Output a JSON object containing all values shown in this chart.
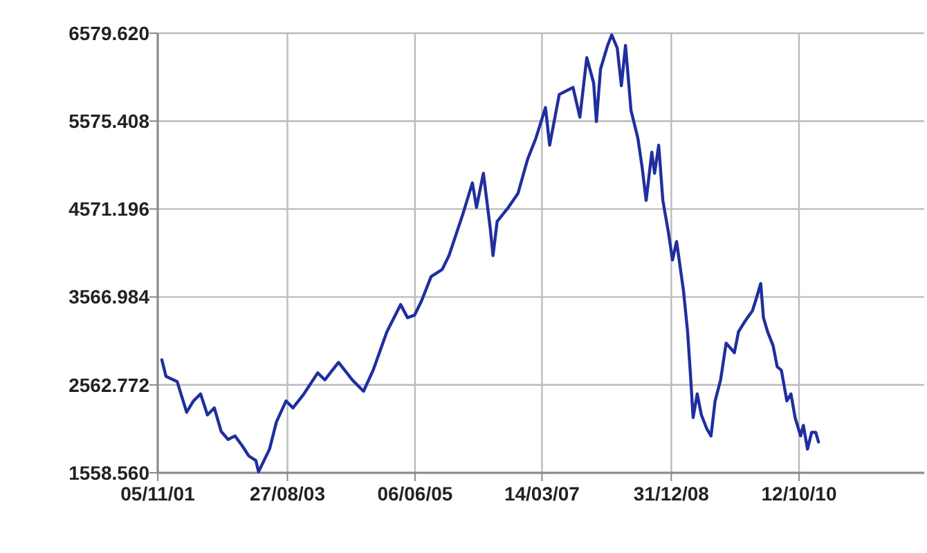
{
  "chart_data": {
    "type": "line",
    "xlim": [
      "2001-11-05",
      "2012-07-10"
    ],
    "ylim": [
      1558.56,
      6579.62
    ],
    "xticks": [
      {
        "value": "2001-11-05",
        "label": "05/11/01"
      },
      {
        "value": "2003-08-27",
        "label": "27/08/03"
      },
      {
        "value": "2005-06-06",
        "label": "06/06/05"
      },
      {
        "value": "2007-03-14",
        "label": "14/03/07"
      },
      {
        "value": "2008-12-31",
        "label": "31/12/08"
      },
      {
        "value": "2010-10-12",
        "label": "12/10/10"
      }
    ],
    "yticks": [
      {
        "value": 1558.56,
        "label": "1558.560"
      },
      {
        "value": 2562.772,
        "label": "2562.772"
      },
      {
        "value": 3566.984,
        "label": "3566.984"
      },
      {
        "value": 4571.196,
        "label": "4571.196"
      },
      {
        "value": 5575.408,
        "label": "5575.408"
      },
      {
        "value": 6579.62,
        "label": "6579.620"
      }
    ],
    "grid": true,
    "marker": "none",
    "line_style": "solid",
    "series": [
      {
        "color": "#1f2f9f",
        "x": [
          "2001-11-26",
          "2001-12-17",
          "2002-02-12",
          "2002-04-01",
          "2002-05-06",
          "2002-06-11",
          "2002-07-16",
          "2002-08-20",
          "2002-09-24",
          "2002-10-29",
          "2002-12-03",
          "2003-01-08",
          "2003-02-12",
          "2003-03-19",
          "2003-04-02",
          "2003-05-28",
          "2003-07-02",
          "2003-08-20",
          "2003-09-24",
          "2003-11-19",
          "2004-01-28",
          "2004-03-04",
          "2004-05-13",
          "2004-07-22",
          "2004-09-17",
          "2004-11-05",
          "2005-01-14",
          "2005-03-25",
          "2005-04-29",
          "2005-06-04",
          "2005-07-09",
          "2005-08-27",
          "2005-10-22",
          "2005-11-26",
          "2006-02-04",
          "2006-03-25",
          "2006-04-15",
          "2006-05-20",
          "2006-06-24",
          "2006-07-08",
          "2006-07-29",
          "2006-09-24",
          "2006-11-12",
          "2006-12-31",
          "2007-02-11",
          "2007-04-01",
          "2007-04-22",
          "2007-06-10",
          "2007-08-19",
          "2007-09-23",
          "2007-10-28",
          "2007-12-02",
          "2007-12-16",
          "2008-01-06",
          "2008-02-11",
          "2008-03-03",
          "2008-03-31",
          "2008-04-21",
          "2008-05-12",
          "2008-06-09",
          "2008-07-14",
          "2008-08-04",
          "2008-08-25",
          "2008-09-23",
          "2008-10-07",
          "2008-10-28",
          "2008-11-18",
          "2008-12-16",
          "2009-01-06",
          "2009-01-27",
          "2009-03-03",
          "2009-03-24",
          "2009-04-07",
          "2009-04-21",
          "2009-05-12",
          "2009-06-02",
          "2009-06-30",
          "2009-07-21",
          "2009-08-11",
          "2009-09-08",
          "2009-10-06",
          "2009-11-17",
          "2009-12-08",
          "2010-01-13",
          "2010-02-17",
          "2010-03-10",
          "2010-03-31",
          "2010-04-14",
          "2010-05-05",
          "2010-06-02",
          "2010-06-23",
          "2010-07-14",
          "2010-08-11",
          "2010-09-01",
          "2010-09-22",
          "2010-10-20",
          "2010-11-03",
          "2010-11-24",
          "2010-12-15",
          "2011-01-05",
          "2011-01-19"
        ],
        "values": [
          2850,
          2660,
          2600,
          2250,
          2380,
          2460,
          2220,
          2300,
          2030,
          1940,
          1980,
          1870,
          1750,
          1700,
          1570,
          1830,
          2140,
          2380,
          2300,
          2460,
          2700,
          2620,
          2820,
          2620,
          2490,
          2730,
          3170,
          3480,
          3330,
          3360,
          3520,
          3800,
          3880,
          4040,
          4510,
          4870,
          4590,
          4980,
          4350,
          4040,
          4430,
          4590,
          4750,
          5140,
          5380,
          5730,
          5300,
          5880,
          5960,
          5620,
          6300,
          6010,
          5570,
          6170,
          6440,
          6560,
          6410,
          5980,
          6440,
          5700,
          5380,
          5060,
          4670,
          5220,
          4980,
          5300,
          4670,
          4310,
          3990,
          4200,
          3640,
          3170,
          2700,
          2190,
          2460,
          2220,
          2060,
          1980,
          2380,
          2620,
          3040,
          2930,
          3170,
          3300,
          3410,
          3560,
          3720,
          3330,
          3170,
          3010,
          2770,
          2730,
          2380,
          2460,
          2190,
          1980,
          2100,
          1830,
          2020,
          2020,
          1910
        ]
      }
    ]
  }
}
